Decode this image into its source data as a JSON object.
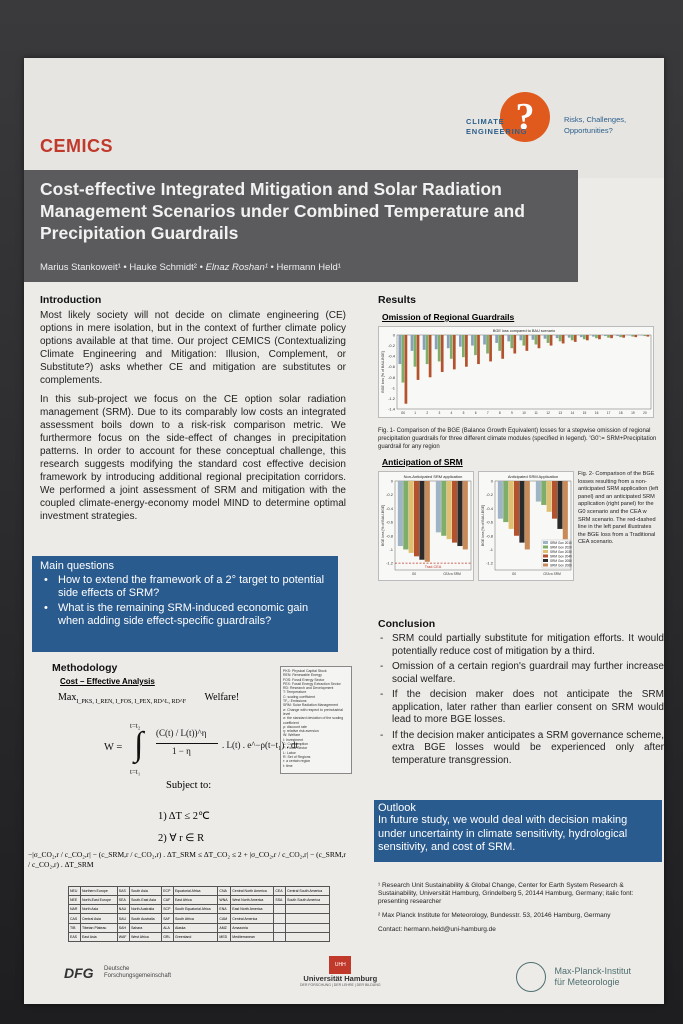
{
  "header": {
    "cemics": "CEMICS",
    "ce_logo_line1": "CLIMATE",
    "ce_logo_line2": "ENGINEERING",
    "ce_tagline_1": "Risks, Challenges,",
    "ce_tagline_2": "Opportunities?",
    "title": "Cost-effective Integrated Mitigation and Solar Radiation Management Scenarios under Combined Temperature and Precipitation Guardrails",
    "author1": "Marius Stankoweit¹",
    "author2": "Hauke Schmidt²",
    "author3": "Elnaz Roshan¹",
    "author4": "Hermann Held¹",
    "sep": " • "
  },
  "introduction": {
    "heading": "Introduction",
    "p1": "Most likely society will not decide on climate engineering (CE) options in mere isolation, but in the context of further climate policy options available at that time. Our project CEMICS (Contextualizing Climate Engineering and Mitigation: Illusion, Complement, or Substitute?) asks whether CE and mitigation are substitutes or complements.",
    "p2": "In this sub-project we focus on the CE option solar radiation management (SRM). Due to its comparably low costs an integrated assessment boils down to a risk-risk comparison metric. We furthermore focus on the side-effect of changes in precipitation patterns. In order to account for these conceptual challenge, this research suggests modifying the standard cost effective decision framework by introducing additional regional precipitation corridors. We performed a joint assessment of SRM and mitigation with the coupled climate-energy-economy model MIND to determine optimal investment strategies."
  },
  "questions": {
    "heading": "Main questions",
    "items": [
      "How to extend the framework of a 2° target to potential side effects of SRM?",
      "What is the remaining SRM-induced economic gain when adding side effect-specific guardrails?"
    ]
  },
  "methodology": {
    "heading": "Methodology",
    "sub": "Cost – Effective Analysis",
    "max": "Max",
    "max_sub": "I_PKS, I_REN, I_FOS, I_PEX, RD^L, RD^F",
    "welfare": "Welfare!",
    "w_eq": "W =",
    "integral_top": "t=t₂",
    "integral_bot": "t=t₁",
    "frac_num": "(C(t) / L(t))^η",
    "frac_den": "1 − η",
    "integrand_rest": ". L(t) . e^−ρ(t−t₁) . dt",
    "subject": "Subject to:",
    "c1": "1)  ΔT ≤ 2℃",
    "c2": "2)  ∀ r ∈ R",
    "c3": "−|σ_CO₂,r / c_CO₂,r| − (c_SRM,r / c_CO₂,r) . ΔT_SRM ≤ ΔT_CO₂ ≤ 2 + |σ_CO₂,r / c_CO₂,r| − (c_SRM,r / c_CO₂,r) . ΔT_SRM",
    "legend": [
      "PKS: Physical Capital Stock",
      "REN: Renewable Energy",
      "FOS: Fossil Energy Sector",
      "PEX: Fossil Energy Extraction Sector",
      "RD: Research and Development",
      "T: Temperature",
      "C: scaling coefficient",
      "TF₂: Emissions",
      "SRM: Solar Radiation Management",
      "σ: Change with respect to preindustrial level",
      "σ: the standard deviation of the scaling coefficient",
      "ρ: discount rate",
      "η: relative risk aversion",
      "W: Welfare",
      "I: Investment",
      "C: Consumption",
      "F: Fossil Sector",
      "L: Labor",
      "R: Set of Regions",
      "r: a certain region",
      "t: time"
    ],
    "regions": [
      [
        "NEU",
        "Northern Europe",
        "SAS",
        "South Asia",
        "ECP",
        "Equatorial Africa",
        "CNA",
        "Central North America",
        "CEA",
        "Central South America"
      ],
      [
        "NEE",
        "North-East Europe",
        "SEA",
        "South-East Asia",
        "CAF",
        "East Africa",
        "WNA",
        "West North America",
        "SSA",
        "South South America"
      ],
      [
        "NAR",
        "North Asia",
        "NAU",
        "North Australia",
        "SCP",
        "South Equatorial Africa",
        "ENA",
        "East North America",
        "",
        ""
      ],
      [
        "CAS",
        "Central Asia",
        "SAU",
        "South Australia",
        "SAF",
        "South Africa",
        "CAM",
        "Central America",
        "",
        ""
      ],
      [
        "TIB",
        "Tibetan Plateau",
        "SAH",
        "Sahara",
        "ALA",
        "Alaska",
        "AMZ",
        "Amazonia",
        "",
        ""
      ],
      [
        "EAS",
        "East Asia",
        "WAF",
        "West Africa",
        "GRL",
        "Greenland",
        "MED",
        "Mediterranean",
        "",
        ""
      ]
    ]
  },
  "results": {
    "heading": "Results",
    "sub1": "Omission of Regional Guardrails",
    "chart1_title": "BGE loss compared to BAU scenario",
    "chart1_ylabel": "BGE loss [% of BAU-BGE]",
    "fig1_caption": "Fig. 1- Comparison of the BGE (Balance Growth Equivalent) losses for a stepwise omission of regional precipitation guardrails for three different climate modules (specified in legend). 'G0':= SRM+Precipitation guardrail for any region",
    "sub2": "Anticipation of SRM",
    "chart2_title": "Non-Anticipated SRM application",
    "chart3_title": "Anticipated SRM Application",
    "chart2_ylabel": "BGE loss [% of BAU-BGE]",
    "tradcea": "Trad.CEA",
    "xcat_g0": "G0",
    "xcat_cea": "CEA w SRM",
    "fig2_caption": "Fig. 2- Comparison of the BGE losses resulting from a non-anticipated SRM application (left panel) and an anticipated SRM application (right panel) for the G0 scenario and the CEA w SRM scenario. The red-dashed line in the left panel illustrates the BGE loss from a Traditional CEA scenario."
  },
  "chart_data": [
    {
      "type": "bar",
      "title": "BGE loss compared to BAU scenario",
      "ylabel": "BGE loss [% of BAU-BGE]",
      "ylim": [
        -1.4,
        0
      ],
      "categories": [
        "G0",
        "1",
        "2",
        "3",
        "4",
        "5",
        "6",
        "7",
        "8",
        "9",
        "10",
        "11",
        "12",
        "13",
        "14",
        "15",
        "16",
        "17",
        "18",
        "19",
        "20"
      ],
      "series": [
        {
          "name": "",
          "color": "#8aa0b8",
          "values": [
            -0.55,
            -0.3,
            -0.28,
            -0.27,
            -0.25,
            -0.22,
            -0.2,
            -0.18,
            -0.15,
            -0.12,
            -0.1,
            -0.09,
            -0.07,
            -0.06,
            -0.05,
            -0.04,
            -0.03,
            -0.02,
            -0.02,
            -0.01,
            -0.01
          ]
        },
        {
          "name": "",
          "color": "#7fae6a",
          "values": [
            -0.9,
            -0.6,
            -0.55,
            -0.5,
            -0.45,
            -0.42,
            -0.38,
            -0.35,
            -0.3,
            -0.25,
            -0.2,
            -0.18,
            -0.15,
            -0.12,
            -0.1,
            -0.08,
            -0.06,
            -0.05,
            -0.04,
            -0.03,
            -0.02
          ]
        },
        {
          "name": "",
          "color": "#b5522e",
          "values": [
            -1.3,
            -0.85,
            -0.8,
            -0.7,
            -0.65,
            -0.6,
            -0.55,
            -0.5,
            -0.45,
            -0.35,
            -0.3,
            -0.25,
            -0.2,
            -0.16,
            -0.13,
            -0.1,
            -0.08,
            -0.06,
            -0.05,
            -0.04,
            -0.03
          ]
        }
      ]
    },
    {
      "type": "bar",
      "title": "Non-Anticipated SRM application",
      "ylabel": "BGE loss [% of BAU-BGE]",
      "ylim": [
        -1.3,
        0
      ],
      "categories": [
        "G0",
        "CEA w SRM"
      ],
      "reference_line": {
        "label": "Trad.CEA",
        "value": -1.2
      },
      "series": [
        {
          "name": "SRM Gov 2010",
          "color": "#9fb5c7",
          "values": [
            -0.95,
            -0.75
          ]
        },
        {
          "name": "SRM Gov 2020",
          "color": "#7fae6a",
          "values": [
            -1.0,
            -0.8
          ]
        },
        {
          "name": "SRM Gov 2030",
          "color": "#e0c070",
          "values": [
            -1.05,
            -0.85
          ]
        },
        {
          "name": "SRM Gov 2040",
          "color": "#b5522e",
          "values": [
            -1.1,
            -0.9
          ]
        },
        {
          "name": "SRM Gov 2050",
          "color": "#2a2a2a",
          "values": [
            -1.15,
            -0.95
          ]
        },
        {
          "name": "SRM Gov 2060",
          "color": "#c98a5a",
          "values": [
            -1.18,
            -1.0
          ]
        }
      ]
    },
    {
      "type": "bar",
      "title": "Anticipated SRM Application",
      "ylabel": "BGE loss [% of BAU-BGE]",
      "ylim": [
        -1.3,
        0
      ],
      "categories": [
        "G0",
        "CEA w SRM"
      ],
      "series": [
        {
          "name": "SRM Gov 2010",
          "color": "#9fb5c7",
          "values": [
            -0.55,
            -0.3
          ]
        },
        {
          "name": "SRM Gov 2020",
          "color": "#7fae6a",
          "values": [
            -0.6,
            -0.35
          ]
        },
        {
          "name": "SRM Gov 2030",
          "color": "#e0c070",
          "values": [
            -0.7,
            -0.45
          ]
        },
        {
          "name": "SRM Gov 2040",
          "color": "#b5522e",
          "values": [
            -0.8,
            -0.55
          ]
        },
        {
          "name": "SRM Gov 2050",
          "color": "#2a2a2a",
          "values": [
            -0.9,
            -0.7
          ]
        },
        {
          "name": "SRM Gov 2060",
          "color": "#c98a5a",
          "values": [
            -1.0,
            -0.85
          ]
        }
      ]
    }
  ],
  "conclusion": {
    "heading": "Conclusion",
    "items": [
      "SRM could partially substitute for mitigation efforts. It would potentially reduce cost of mitigation by a third.",
      "Omission of a certain region's guardrail may further increase social welfare.",
      "If the decision maker does not anticipate the SRM application, later rather than earlier consent on SRM would lead to more BGE losses.",
      "If the decision maker anticipates a SRM governance scheme, extra BGE losses would be experienced only after temperature transgression."
    ]
  },
  "outlook": {
    "heading": "Outlook",
    "text": "In future study, we would deal with decision making under uncertainty in climate sensitivity, hydrological sensitivity, and cost of SRM."
  },
  "footnotes": {
    "f1": "¹ Research Unit Sustainability & Global Change, Center for Earth System Research & Sustainability, Universität Hamburg, Grindelberg 5, 20144 Hamburg, Germany; italic font: presenting researcher",
    "f2": "² Max Planck Institute for Meteorology, Bundesstr. 53, 20146 Hamburg, Germany",
    "contact": "Contact: hermann.held@uni-hamburg.de"
  },
  "logos": {
    "dfg": "DFG",
    "dfg_sub1": "Deutsche",
    "dfg_sub2": "Forschungsgemeinschaft",
    "uhh_badge": "UHH",
    "uhh_name": "Universität Hamburg",
    "uhh_motto": "DER FORSCHUNG | DER LEHRE | DER BILDUNG",
    "mpi_1": "Max-Planck-Institut",
    "mpi_2": "für Meteorologie"
  }
}
